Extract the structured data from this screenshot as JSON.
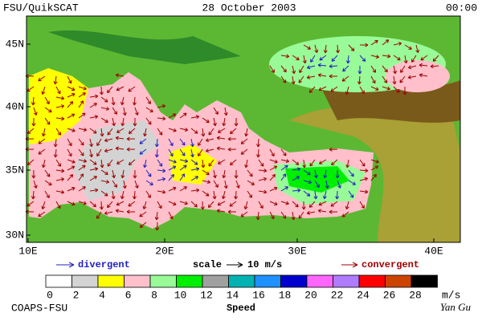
{
  "header": {
    "left": "FSU/QuikSCAT",
    "center": "28 October 2003",
    "right": "00:00"
  },
  "map": {
    "lat_labels": [
      "45N",
      "40N",
      "35N",
      "30N"
    ],
    "lon_labels": [
      "10E",
      "20E",
      "30E",
      "40E"
    ]
  },
  "legend": {
    "divergent": "divergent",
    "scale": "scale",
    "scale_value": "10 m/s",
    "convergent": "convergent"
  },
  "colorbar": {
    "ticks": [
      0,
      2,
      4,
      6,
      8,
      10,
      12,
      14,
      16,
      18,
      20,
      22,
      24,
      26,
      28
    ],
    "colors": [
      "#ffffff",
      "#d3d3d3",
      "#ffff00",
      "#ffc0cb",
      "#98fb98",
      "#00ee00",
      "#a0a0a0",
      "#00b2b2",
      "#1e90ff",
      "#0000cd",
      "#ff66ff",
      "#b07cff",
      "#ff0000",
      "#cc4400",
      "#000000"
    ],
    "unit": "m/s",
    "title": "Speed"
  },
  "footer": {
    "left": "COAPS-FSU",
    "right": "Yan Gu"
  }
}
